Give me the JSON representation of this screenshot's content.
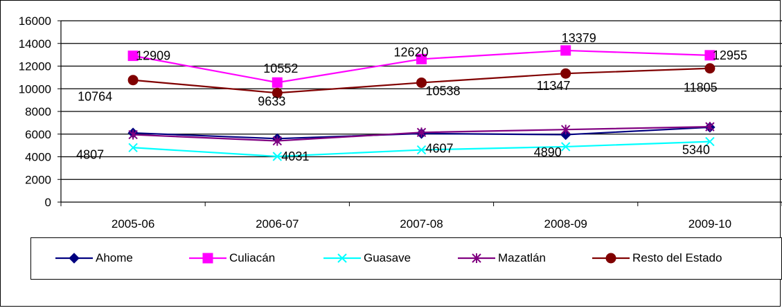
{
  "chart_data": {
    "type": "line",
    "title": "",
    "xlabel": "",
    "ylabel": "",
    "ylim": [
      0,
      16000
    ],
    "yticks": [
      0,
      2000,
      4000,
      6000,
      8000,
      10000,
      12000,
      14000,
      16000
    ],
    "grid": true,
    "legend_position": "bottom",
    "categories": [
      "2005-06",
      "2006-07",
      "2007-08",
      "2008-09",
      "2009-10"
    ],
    "series": [
      {
        "name": "Ahome",
        "values": [
          6100,
          5600,
          6050,
          5950,
          6600
        ],
        "color": "#000080",
        "marker": "diamond",
        "labels": false
      },
      {
        "name": "Culiacán",
        "values": [
          12909,
          10552,
          12620,
          13379,
          12955
        ],
        "color": "#ff00ff",
        "marker": "square",
        "labels": true
      },
      {
        "name": "Guasave",
        "values": [
          4807,
          4031,
          4607,
          4890,
          5340
        ],
        "color": "#00ffff",
        "marker": "x",
        "labels": true
      },
      {
        "name": "Mazatlán",
        "values": [
          5950,
          5400,
          6150,
          6400,
          6650
        ],
        "color": "#800080",
        "marker": "star",
        "labels": false
      },
      {
        "name": "Resto del Estado",
        "values": [
          10764,
          9633,
          10538,
          11347,
          11805
        ],
        "color": "#800000",
        "marker": "circle",
        "labels": true
      }
    ]
  }
}
